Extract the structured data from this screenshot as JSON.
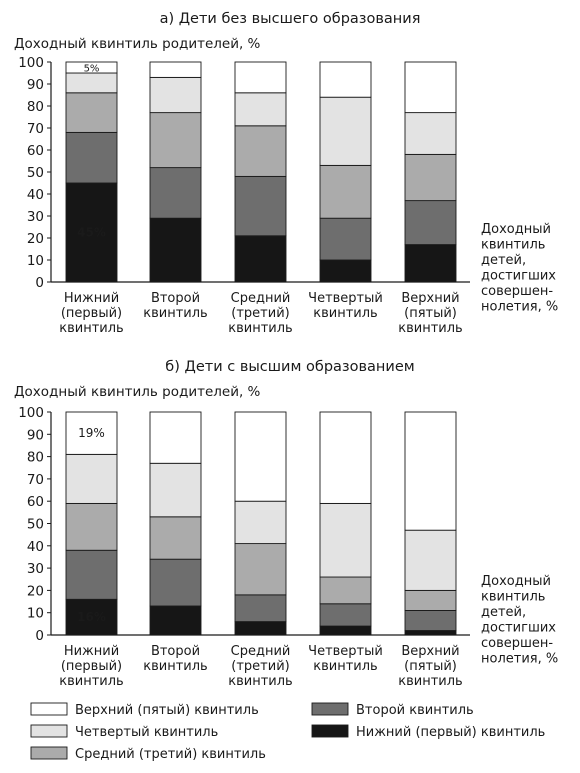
{
  "chart_data": [
    {
      "type": "bar",
      "stacked": true,
      "title": "а) Дети без высшего образования",
      "ylabel": "Доходный квинтиль родителей, %",
      "xlabel_lines": [
        "Доходный",
        "квинтиль",
        "детей,",
        "достигших",
        "совершен-",
        "нолетия, %"
      ],
      "ylim": [
        0,
        100
      ],
      "yticks": [
        0,
        10,
        20,
        30,
        40,
        50,
        60,
        70,
        80,
        90,
        100
      ],
      "categories": [
        [
          "Нижний",
          "(первый)",
          "квинтиль"
        ],
        [
          "Второй",
          "квинтиль"
        ],
        [
          "Средний",
          "(третий)",
          "квинтиль"
        ],
        [
          "Четвертый",
          "квинтиль"
        ],
        [
          "Верхний",
          "(пятый)",
          "квинтиль"
        ]
      ],
      "series": [
        {
          "name": "Нижний (первый) квинтиль",
          "values": [
            45,
            29,
            21,
            10,
            17
          ]
        },
        {
          "name": "Второй квинтиль",
          "values": [
            23,
            23,
            27,
            19,
            20
          ]
        },
        {
          "name": "Средний (третий) квинтиль",
          "values": [
            18,
            25,
            23,
            24,
            21
          ]
        },
        {
          "name": "Четвертый квинтиль",
          "values": [
            9,
            16,
            15,
            31,
            19
          ]
        },
        {
          "name": "Верхний (пятый) квинтиль",
          "values": [
            5,
            7,
            14,
            16,
            23
          ]
        }
      ],
      "annotations": [
        {
          "series": 0,
          "category": 0,
          "text": "45%"
        },
        {
          "series": 4,
          "category": 0,
          "text": "5%"
        }
      ]
    },
    {
      "type": "bar",
      "stacked": true,
      "title": "б) Дети с высшим образованием",
      "ylabel": "Доходный квинтиль родителей, %",
      "xlabel_lines": [
        "Доходный",
        "квинтиль",
        "детей,",
        "достигших",
        "совершен-",
        "нолетия, %"
      ],
      "ylim": [
        0,
        100
      ],
      "yticks": [
        0,
        10,
        20,
        30,
        40,
        50,
        60,
        70,
        80,
        90,
        100
      ],
      "categories": [
        [
          "Нижний",
          "(первый)",
          "квинтиль"
        ],
        [
          "Второй",
          "квинтиль"
        ],
        [
          "Средний",
          "(третий)",
          "квинтиль"
        ],
        [
          "Четвертый",
          "квинтиль"
        ],
        [
          "Верхний",
          "(пятый)",
          "квинтиль"
        ]
      ],
      "series": [
        {
          "name": "Нижний (первый) квинтиль",
          "values": [
            16,
            13,
            6,
            4,
            2
          ]
        },
        {
          "name": "Второй квинтиль",
          "values": [
            22,
            21,
            12,
            10,
            9
          ]
        },
        {
          "name": "Средний (третий) квинтиль",
          "values": [
            21,
            19,
            23,
            12,
            9
          ]
        },
        {
          "name": "Четвертый квинтиль",
          "values": [
            22,
            24,
            19,
            33,
            27
          ]
        },
        {
          "name": "Верхний (пятый) квинтиль",
          "values": [
            19,
            23,
            40,
            41,
            53
          ]
        }
      ],
      "annotations": [
        {
          "series": 0,
          "category": 0,
          "text": "16%"
        },
        {
          "series": 4,
          "category": 0,
          "text": "19%"
        }
      ]
    }
  ],
  "legend": {
    "items": [
      {
        "label": "Верхний (пятый) квинтиль",
        "color": "#ffffff"
      },
      {
        "label": "Второй квинтиль",
        "color": "#6e6e6e"
      },
      {
        "label": "Четвертый квинтиль",
        "color": "#e3e3e3"
      },
      {
        "label": "Нижний (первый) квинтиль",
        "color": "#161616"
      },
      {
        "label": "Средний (третий) квинтиль",
        "color": "#ababab"
      }
    ]
  },
  "colors": {
    "series": [
      "#161616",
      "#6e6e6e",
      "#ababab",
      "#e3e3e3",
      "#ffffff"
    ],
    "stroke": "#1a1a1a"
  }
}
